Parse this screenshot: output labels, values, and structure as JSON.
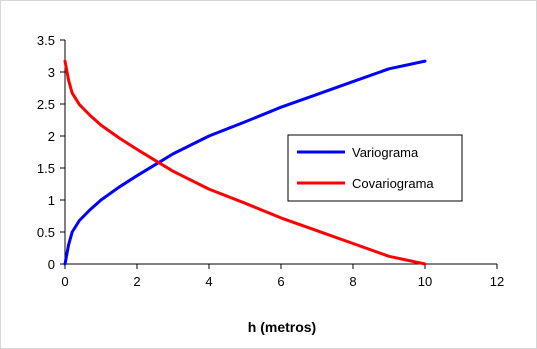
{
  "chart_data": {
    "type": "line",
    "title": "",
    "xlabel": "h (metros)",
    "ylabel": "",
    "xlim": [
      0,
      12
    ],
    "ylim": [
      0,
      3.5
    ],
    "xticks": [
      "0",
      "2",
      "4",
      "6",
      "8",
      "10",
      "12"
    ],
    "yticks": [
      "0",
      "0.5",
      "1",
      "1.5",
      "2",
      "2.5",
      "3",
      "3.5"
    ],
    "legend_position": "right",
    "grid": false,
    "series": [
      {
        "name": "Variograma",
        "color": "#0000ff",
        "x": [
          0,
          0.1,
          0.2,
          0.4,
          0.7,
          1.0,
          1.5,
          2.0,
          2.5,
          3.0,
          4.0,
          5.0,
          6.0,
          7.0,
          8.0,
          9.0,
          10.0
        ],
        "y": [
          0,
          0.3,
          0.5,
          0.68,
          0.85,
          1.0,
          1.2,
          1.38,
          1.55,
          1.72,
          2.0,
          2.22,
          2.45,
          2.65,
          2.85,
          3.05,
          3.17
        ]
      },
      {
        "name": "Covariograma",
        "color": "#ff0000",
        "x": [
          0,
          0.1,
          0.2,
          0.4,
          0.7,
          1.0,
          1.5,
          2.0,
          2.5,
          3.0,
          4.0,
          5.0,
          6.0,
          7.0,
          8.0,
          9.0,
          10.0
        ],
        "y": [
          3.17,
          2.87,
          2.67,
          2.49,
          2.32,
          2.17,
          1.97,
          1.79,
          1.62,
          1.45,
          1.17,
          0.95,
          0.72,
          0.52,
          0.32,
          0.12,
          0.0
        ]
      }
    ]
  }
}
